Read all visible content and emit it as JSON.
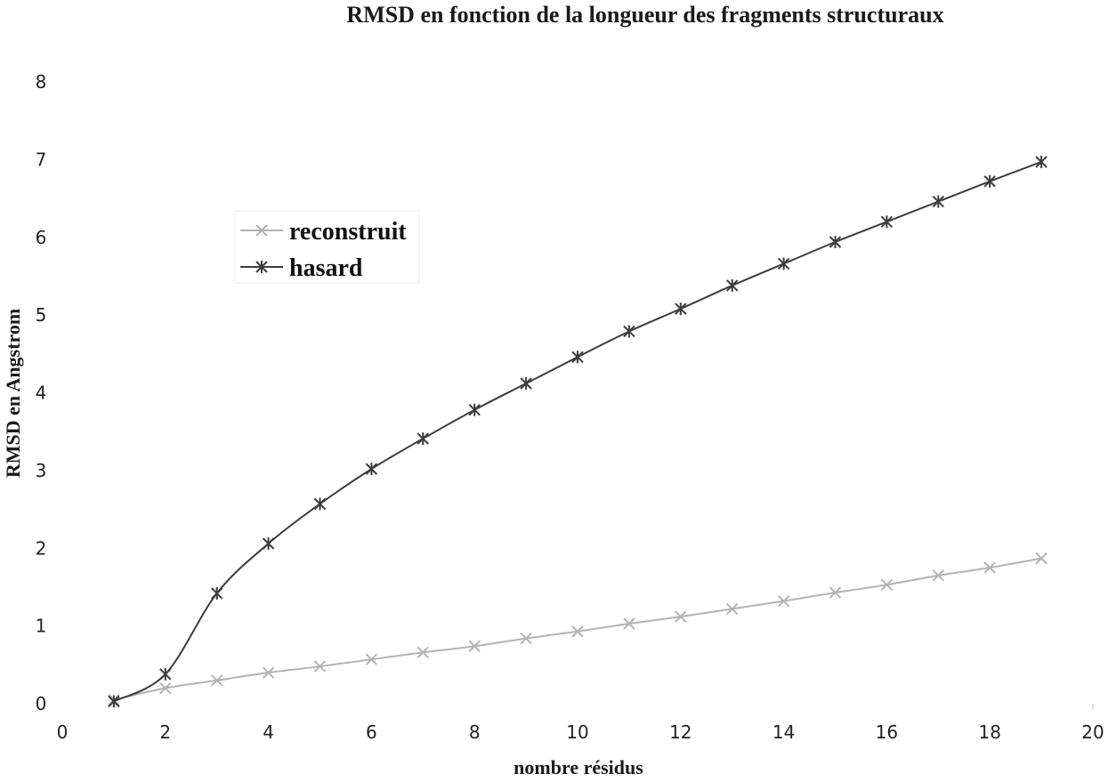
{
  "chart_data": {
    "type": "line",
    "title": "RMSD en fonction de la longueur des fragments structuraux",
    "xlabel": "nombre résidus",
    "ylabel": "RMSD en Angstrom",
    "xlim": [
      0,
      20
    ],
    "ylim": [
      0,
      8
    ],
    "x_ticks": [
      "0",
      "2",
      "4",
      "6",
      "8",
      "10",
      "12",
      "14",
      "16",
      "18",
      "20"
    ],
    "y_ticks": [
      "0",
      "1",
      "2",
      "3",
      "4",
      "5",
      "6",
      "7",
      "8"
    ],
    "grid": false,
    "legend_position": "upper-left",
    "x": [
      1,
      2,
      3,
      4,
      5,
      6,
      7,
      8,
      9,
      10,
      11,
      12,
      13,
      14,
      15,
      16,
      17,
      18,
      19
    ],
    "series": [
      {
        "name": "reconstruit",
        "marker": "x",
        "color": "#b3b3b3",
        "values": [
          0.05,
          0.2,
          0.3,
          0.4,
          0.48,
          0.57,
          0.66,
          0.74,
          0.84,
          0.93,
          1.03,
          1.12,
          1.22,
          1.32,
          1.43,
          1.53,
          1.65,
          1.75,
          1.87
        ]
      },
      {
        "name": "hasard",
        "marker": "asterisk",
        "color": "#3c3c3c",
        "values": [
          0.03,
          0.38,
          1.42,
          2.06,
          2.57,
          3.02,
          3.41,
          3.78,
          4.12,
          4.46,
          4.79,
          5.08,
          5.38,
          5.66,
          5.94,
          6.2,
          6.46,
          6.72,
          6.97
        ]
      }
    ]
  }
}
